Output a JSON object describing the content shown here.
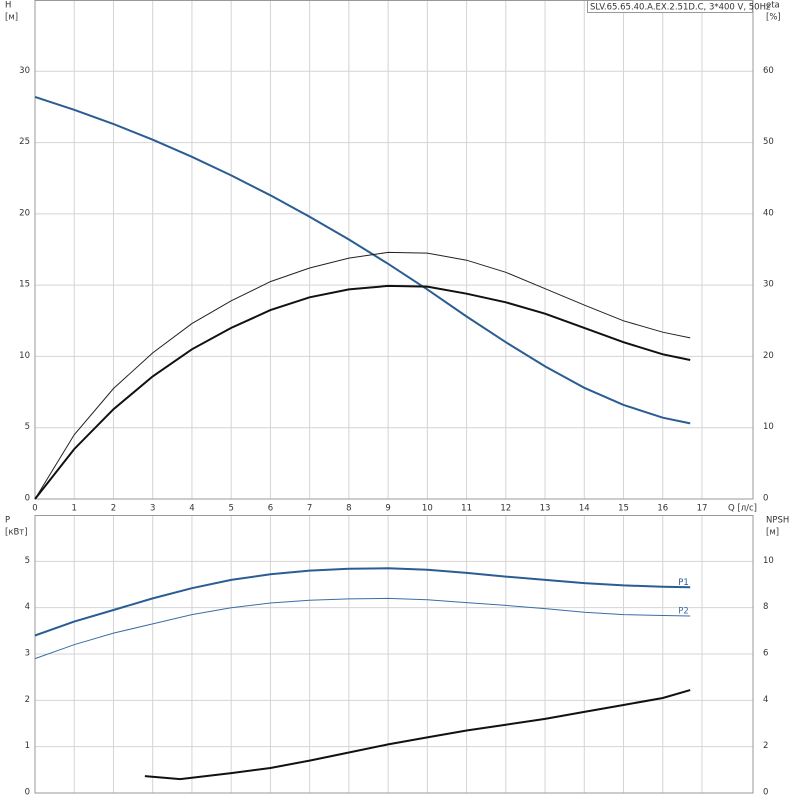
{
  "chart_data": [
    {
      "type": "line",
      "title": "SLV.65.65.40.A.EX.2.51D.C, 3*400 V, 50Hz",
      "y_label": "H",
      "y_unit": "[м]",
      "y2_label": "eta",
      "y2_unit": "[%]",
      "x_label": "Q [л/с]",
      "xlim": [
        0,
        18.3
      ],
      "xticks": [
        0,
        1,
        2,
        3,
        4,
        5,
        6,
        7,
        8,
        9,
        10,
        11,
        12,
        13,
        14,
        15,
        16,
        17
      ],
      "ylim": [
        0,
        35
      ],
      "yticks": [
        0,
        5,
        10,
        15,
        20,
        25,
        30
      ],
      "y2lim": [
        0,
        70
      ],
      "y2ticks": [
        0,
        10,
        20,
        30,
        40,
        50,
        60
      ],
      "grid": true,
      "x": [
        0,
        1,
        2,
        3,
        4,
        5,
        6,
        7,
        8,
        9,
        10,
        11,
        12,
        13,
        14,
        15,
        16,
        16.7
      ],
      "series": [
        {
          "color": "#2a5d94",
          "width": 2,
          "values": [
            28.2,
            27.3,
            26.3,
            25.2,
            24.0,
            22.7,
            21.3,
            19.8,
            18.2,
            16.5,
            14.7,
            12.8,
            11.0,
            9.3,
            7.8,
            6.6,
            5.7,
            5.3
          ]
        },
        {
          "color": "#222222",
          "width": 1,
          "axis": "y2",
          "values": [
            0,
            9,
            15.5,
            20.5,
            24.6,
            27.8,
            30.5,
            32.4,
            33.8,
            34.6,
            34.5,
            33.5,
            31.8,
            29.5,
            27.2,
            25.0,
            23.4,
            22.6
          ]
        },
        {
          "color": "#111111",
          "width": 2,
          "axis": "y2",
          "values": [
            0,
            7,
            12.6,
            17.2,
            21.0,
            24.0,
            26.5,
            28.3,
            29.4,
            29.9,
            29.8,
            28.8,
            27.6,
            26.0,
            24.0,
            22.0,
            20.3,
            19.5
          ]
        }
      ]
    },
    {
      "type": "line",
      "y_label": "P",
      "y_unit": "[кВт]",
      "y2_label": "NPSH",
      "y2_unit": "[м]",
      "xlim": [
        0,
        18.3
      ],
      "xticks": [
        0,
        1,
        2,
        3,
        4,
        5,
        6,
        7,
        8,
        9,
        10,
        11,
        12,
        13,
        14,
        15,
        16,
        17
      ],
      "xtick_labels": false,
      "ylim": [
        0,
        6
      ],
      "yticks": [
        0,
        1,
        2,
        3,
        4,
        5
      ],
      "y2lim": [
        0,
        12
      ],
      "y2ticks": [
        0,
        2,
        4,
        6,
        8,
        10
      ],
      "grid": true,
      "x": [
        0,
        1,
        2,
        3,
        4,
        5,
        6,
        7,
        8,
        9,
        10,
        11,
        12,
        13,
        14,
        15,
        16,
        16.7
      ],
      "series": [
        {
          "name": "P1",
          "color": "#2a5d94",
          "width": 2,
          "values": [
            3.4,
            3.7,
            3.95,
            4.2,
            4.42,
            4.6,
            4.72,
            4.8,
            4.84,
            4.85,
            4.82,
            4.75,
            4.67,
            4.6,
            4.53,
            4.48,
            4.45,
            4.44
          ]
        },
        {
          "name": "P2",
          "color": "#3a6ea5",
          "width": 1,
          "values": [
            2.9,
            3.2,
            3.45,
            3.65,
            3.85,
            4.0,
            4.1,
            4.16,
            4.19,
            4.2,
            4.17,
            4.11,
            4.05,
            3.98,
            3.9,
            3.85,
            3.83,
            3.82
          ]
        },
        {
          "color": "#111111",
          "width": 2,
          "axis": "y2",
          "x": [
            2.8,
            3.7,
            5,
            6,
            7,
            8,
            9,
            10,
            11,
            12,
            13,
            14,
            15,
            16,
            16.7
          ],
          "values": [
            0.73,
            0.6,
            0.86,
            1.08,
            1.4,
            1.75,
            2.1,
            2.4,
            2.7,
            2.95,
            3.2,
            3.5,
            3.8,
            4.1,
            4.44
          ]
        }
      ]
    }
  ]
}
